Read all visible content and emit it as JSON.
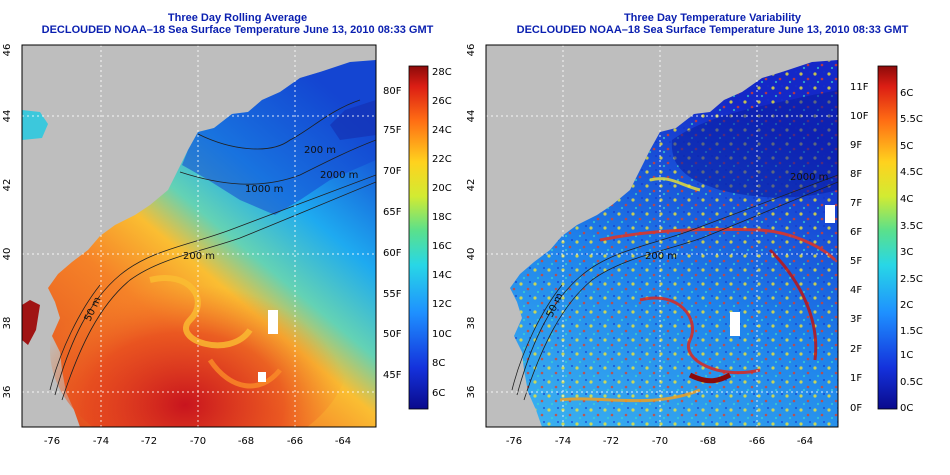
{
  "panels": [
    {
      "title1": "Three Day Rolling Average",
      "title2": "DECLOUDED NOAA–18 Sea Surface Temperature June 13, 2010 08:33 GMT",
      "lat_ticks": [
        "46",
        "44",
        "42",
        "40",
        "38",
        "36"
      ],
      "lon_ticks": [
        "-76",
        "-74",
        "-72",
        "-70",
        "-68",
        "-66",
        "-64"
      ],
      "contour_labels": [
        "200 m",
        "1000 m",
        "50 m",
        "200 m",
        "2000 m"
      ],
      "colorbar_c": [
        "28C",
        "26C",
        "24C",
        "22C",
        "20C",
        "18C",
        "16C",
        "14C",
        "12C",
        "10C",
        "8C",
        "6C"
      ],
      "colorbar_f": [
        "80F",
        "75F",
        "70F",
        "65F",
        "60F",
        "55F",
        "50F",
        "45F"
      ]
    },
    {
      "title1": "Three Day Temperature Variability",
      "title2": "DECLOUDED NOAA–18 Sea Surface Temperature June 13, 2010 08:33 GMT",
      "lat_ticks": [
        "46",
        "44",
        "42",
        "40",
        "38",
        "36"
      ],
      "lon_ticks": [
        "-76",
        "-74",
        "-72",
        "-70",
        "-68",
        "-66",
        "-64"
      ],
      "contour_labels": [
        "200 m",
        "2000 m",
        "50 m"
      ],
      "colorbar_f": [
        "11F",
        "10F",
        "9F",
        "8F",
        "7F",
        "6F",
        "5F",
        "4F",
        "3F",
        "2F",
        "1F",
        "0F"
      ],
      "colorbar_c": [
        "6C",
        "5.5C",
        "5C",
        "4.5C",
        "4C",
        "3.5C",
        "3C",
        "2.5C",
        "2C",
        "1.5C",
        "1C",
        "0.5C",
        "0C"
      ]
    }
  ],
  "colors": {
    "title": "#0a1fb0",
    "land": "#bebebe",
    "grid": "#ffffff",
    "contour": "#202020"
  }
}
